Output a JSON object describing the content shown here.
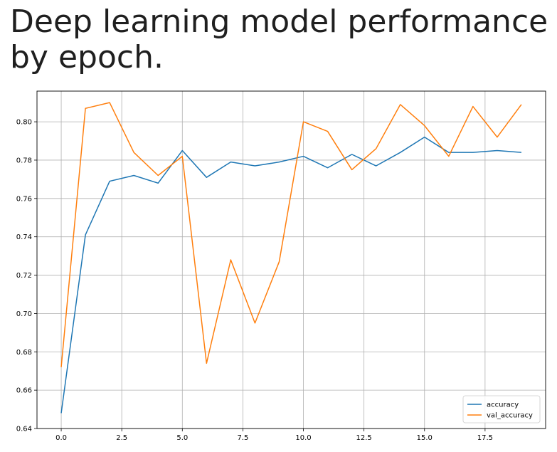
{
  "title": "Deep learning model performance by epoch.",
  "chart_data": {
    "type": "line",
    "title": "Deep learning model performance by epoch.",
    "xlabel": "",
    "ylabel": "",
    "x": [
      0,
      1,
      2,
      3,
      4,
      5,
      6,
      7,
      8,
      9,
      10,
      11,
      12,
      13,
      14,
      15,
      16,
      17,
      18,
      19
    ],
    "series": [
      {
        "name": "accuracy",
        "color": "#1f77b4",
        "values": [
          0.648,
          0.741,
          0.769,
          0.772,
          0.768,
          0.785,
          0.771,
          0.779,
          0.777,
          0.779,
          0.782,
          0.776,
          0.783,
          0.777,
          0.784,
          0.792,
          0.784,
          0.784,
          0.785,
          0.784
        ]
      },
      {
        "name": "val_accuracy",
        "color": "#ff7f0e",
        "values": [
          0.672,
          0.807,
          0.81,
          0.784,
          0.772,
          0.782,
          0.674,
          0.728,
          0.695,
          0.727,
          0.8,
          0.795,
          0.775,
          0.786,
          0.809,
          0.798,
          0.782,
          0.808,
          0.792,
          0.809
        ]
      }
    ],
    "xlim": [
      -1,
      20
    ],
    "ylim": [
      0.64,
      0.816
    ],
    "xticks": [
      0.0,
      2.5,
      5.0,
      7.5,
      10.0,
      12.5,
      15.0,
      17.5
    ],
    "xtick_labels": [
      "0.0",
      "2.5",
      "5.0",
      "7.5",
      "10.0",
      "12.5",
      "15.0",
      "17.5"
    ],
    "yticks": [
      0.64,
      0.66,
      0.68,
      0.7,
      0.72,
      0.74,
      0.76,
      0.78,
      0.8
    ],
    "ytick_labels": [
      "0.64",
      "0.66",
      "0.68",
      "0.70",
      "0.72",
      "0.74",
      "0.76",
      "0.78",
      "0.80"
    ],
    "grid": true,
    "legend": "lower-right"
  }
}
